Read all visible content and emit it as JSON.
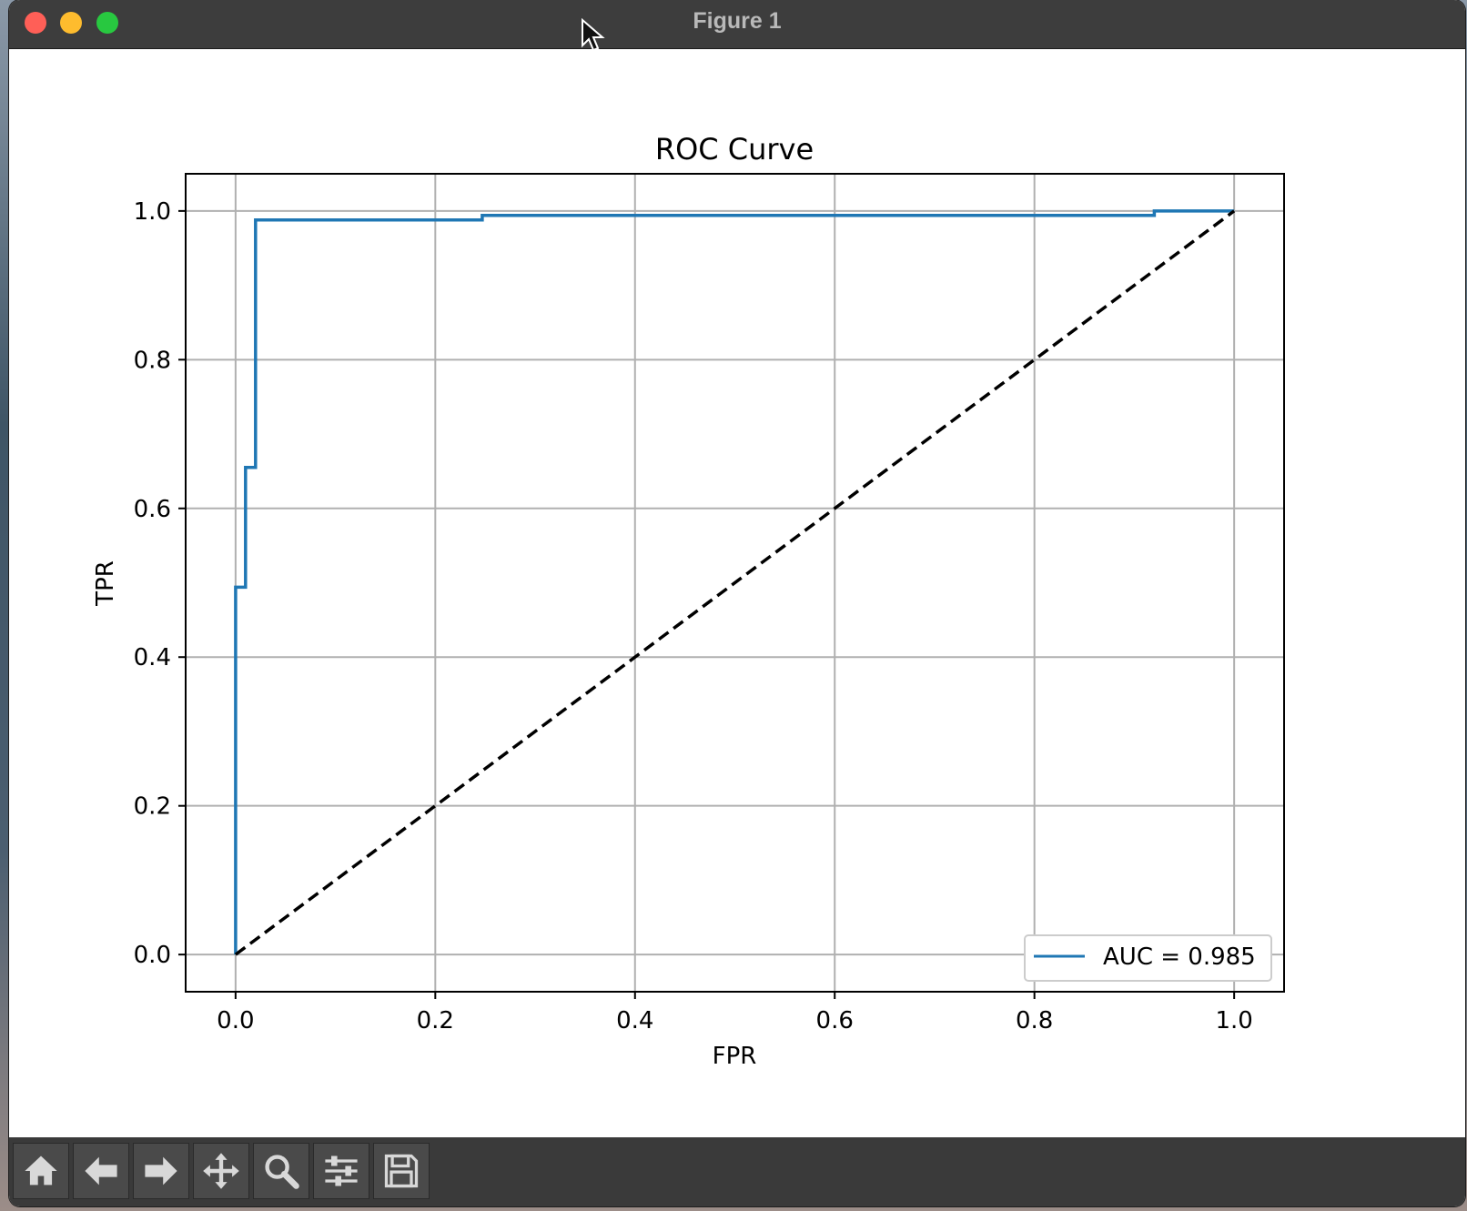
{
  "window": {
    "title": "Figure 1"
  },
  "toolbar": {
    "buttons": [
      {
        "name": "home-button",
        "icon": "home-icon"
      },
      {
        "name": "back-button",
        "icon": "arrow-left-icon"
      },
      {
        "name": "forward-button",
        "icon": "arrow-right-icon"
      },
      {
        "name": "pan-button",
        "icon": "move-icon"
      },
      {
        "name": "zoom-button",
        "icon": "magnifier-icon"
      },
      {
        "name": "configure-subplots-button",
        "icon": "sliders-icon"
      },
      {
        "name": "save-button",
        "icon": "floppy-disk-icon"
      }
    ]
  },
  "chart_data": {
    "type": "line",
    "title": "ROC Curve",
    "xlabel": "FPR",
    "ylabel": "TPR",
    "xlim": [
      -0.05,
      1.05
    ],
    "ylim": [
      -0.05,
      1.05
    ],
    "xticks": [
      "0.0",
      "0.2",
      "0.4",
      "0.6",
      "0.8",
      "1.0"
    ],
    "yticks": [
      "0.0",
      "0.2",
      "0.4",
      "0.6",
      "0.8",
      "1.0"
    ],
    "grid": true,
    "legend_position": "lower right",
    "series": [
      {
        "name": "AUC = 0.985",
        "color": "#1f77b4",
        "style": "solid",
        "x": [
          0.0,
          0.0,
          0.01,
          0.01,
          0.02,
          0.02,
          0.247,
          0.247,
          0.92,
          0.92,
          1.0
        ],
        "y": [
          0.0,
          0.494,
          0.494,
          0.655,
          0.655,
          0.988,
          0.988,
          0.994,
          0.994,
          1.0,
          1.0
        ]
      },
      {
        "color": "#000000",
        "style": "dashed",
        "x": [
          0.0,
          1.0
        ],
        "y": [
          0.0,
          1.0
        ]
      }
    ]
  }
}
